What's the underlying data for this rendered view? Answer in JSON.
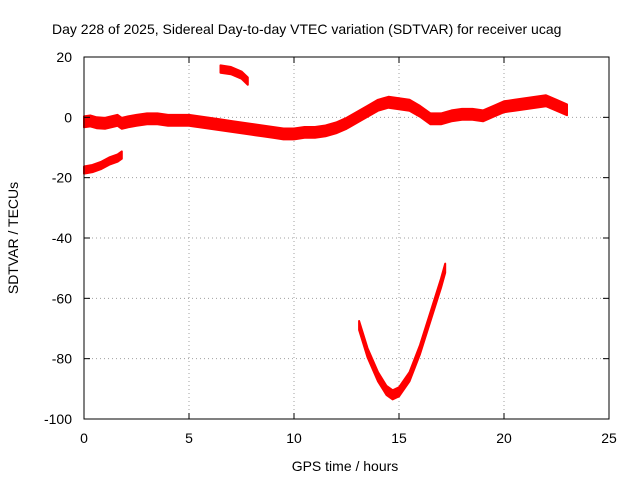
{
  "chart_data": {
    "type": "line",
    "title": "Day 228 of 2025, Sidereal Day-to-day VTEC variation (SDTVAR) for receiver ucag",
    "xlabel": "GPS time / hours",
    "ylabel": "SDTVAR / TECUs",
    "xlim": [
      0,
      25
    ],
    "ylim": [
      -100,
      20
    ],
    "xticks": [
      0,
      5,
      10,
      15,
      20,
      25
    ],
    "yticks": [
      -100,
      -80,
      -60,
      -40,
      -20,
      0,
      20
    ],
    "grid": true,
    "series_color": "#ff0000",
    "series": [
      {
        "name": "main-track",
        "band": 1.8,
        "x": [
          0.0,
          0.3,
          0.6,
          1.0,
          1.3,
          1.6,
          1.8,
          2.1,
          2.5,
          3.0,
          3.5,
          4.0,
          4.5,
          5.0,
          5.5,
          6.0,
          6.5,
          7.0,
          7.5,
          8.0,
          8.5,
          9.0,
          9.5,
          10.0,
          10.5,
          11.0,
          11.5,
          12.0,
          12.5,
          13.0,
          13.5,
          14.0,
          14.5,
          15.0,
          15.5,
          16.0,
          16.5,
          17.0,
          17.5,
          18.0,
          18.5,
          19.0,
          19.5,
          20.0,
          20.5,
          21.0,
          21.5,
          22.0,
          22.5,
          23.0
        ],
        "y": [
          -1.5,
          -1.2,
          -1.8,
          -2.0,
          -1.5,
          -1.0,
          -2.0,
          -1.5,
          -1.0,
          -0.5,
          -0.5,
          -1.0,
          -1.0,
          -1.0,
          -1.5,
          -2.0,
          -2.5,
          -3.0,
          -3.5,
          -4.0,
          -4.5,
          -5.0,
          -5.5,
          -5.5,
          -5.0,
          -5.0,
          -4.5,
          -3.5,
          -2.0,
          0.0,
          2.0,
          4.0,
          5.0,
          4.5,
          4.0,
          2.0,
          -0.5,
          -0.5,
          0.5,
          1.0,
          1.0,
          0.5,
          2.0,
          3.5,
          4.0,
          4.5,
          5.0,
          5.5,
          4.0,
          2.5
        ]
      },
      {
        "name": "early-segment",
        "band": 1.2,
        "x": [
          0.0,
          0.4,
          0.8,
          1.2,
          1.6,
          1.8
        ],
        "y": [
          -17.5,
          -17.0,
          -16.0,
          -14.5,
          -13.5,
          -12.5
        ]
      },
      {
        "name": "upper-segment",
        "band": 1.2,
        "x": [
          6.5,
          7.0,
          7.5,
          7.8
        ],
        "y": [
          16.0,
          15.5,
          14.0,
          12.0
        ]
      },
      {
        "name": "dip-arc",
        "band": 1.5,
        "x": [
          13.1,
          13.5,
          14.0,
          14.4,
          14.7,
          15.0,
          15.5,
          16.0,
          16.5,
          17.0,
          17.2
        ],
        "y": [
          -69.0,
          -78.0,
          -86.0,
          -90.5,
          -92.0,
          -91.0,
          -86.0,
          -77.0,
          -66.0,
          -55.0,
          -50.0
        ]
      }
    ]
  }
}
